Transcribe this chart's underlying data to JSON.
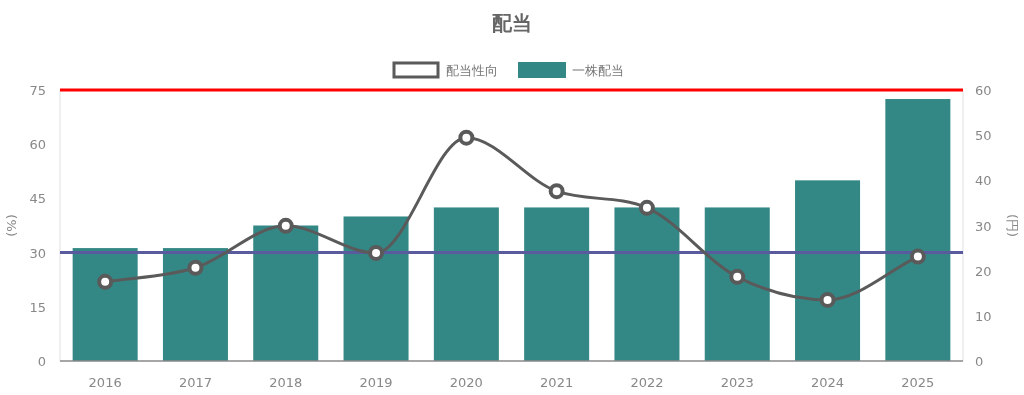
{
  "chart_data": {
    "type": "bar",
    "title": "配当",
    "categories": [
      "2016",
      "2017",
      "2018",
      "2019",
      "2020",
      "2021",
      "2022",
      "2023",
      "2024",
      "2025"
    ],
    "series": [
      {
        "name": "配当性向",
        "type": "line",
        "axis": "y",
        "color": "#5a5a5a",
        "marker": "circle",
        "values": [
          21.9,
          25.8,
          37.4,
          29.9,
          61.8,
          47.0,
          42.4,
          23.3,
          16.9,
          28.9
        ]
      },
      {
        "name": "一株配当",
        "type": "bar",
        "axis": "y2",
        "color": "#338886",
        "values": [
          25,
          25,
          30,
          32,
          34,
          34,
          34,
          34,
          40,
          58
        ]
      }
    ],
    "ylabel": "(%)",
    "y2label": "(円)",
    "ylim": [
      0,
      75
    ],
    "yticks": [
      0,
      15,
      30,
      45,
      60,
      75
    ],
    "y2lim": [
      0,
      60
    ],
    "y2ticks": [
      0,
      10,
      20,
      30,
      40,
      50,
      60
    ],
    "ref_lines": [
      {
        "axis": "y",
        "value": 75,
        "color": "#ff0000"
      },
      {
        "axis": "y",
        "value": 30,
        "color": "#5a5a9e"
      }
    ],
    "legend": "top",
    "grid": false
  }
}
